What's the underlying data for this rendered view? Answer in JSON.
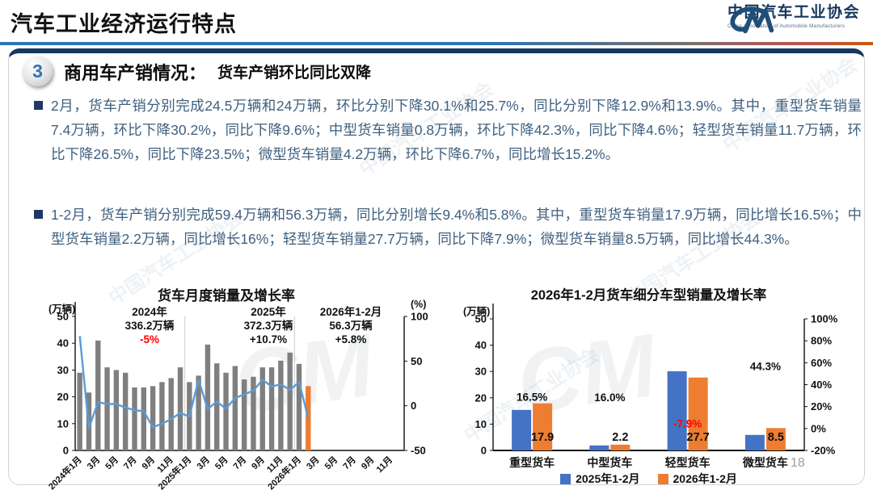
{
  "page": {
    "title": "汽车工业经济运行特点",
    "page_number": "18"
  },
  "logo": {
    "name_cn": "中国汽车工业协会",
    "name_en": "China Association of Automobile Manufacturers"
  },
  "section": {
    "badge": "3",
    "title": "商用车产销情况：",
    "subtitle": "货车产销环比同比双降"
  },
  "bullets": [
    "2月，货车产销分别完成24.5万辆和24万辆，环比分别下降30.1%和25.7%，同比分别下降12.9%和13.9%。其中，重型货车销量7.4万辆，环比下降30.2%，同比下降9.6%；中型货车销量0.8万辆，环比下降42.3%，同比下降4.6%；轻型货车销量11.7万辆，环比下降26.5%，同比下降23.5%；微型货车销量4.2万辆，环比下降6.7%，同比增长15.2%。",
    "1-2月，货车产销分别完成59.4万辆和56.3万辆，同比分别增长9.4%和5.8%。其中，重型货车销量17.9万辆，同比增长16.5%；中型货车销量2.2万辆，同比增长16%；轻型货车销量27.7万辆，同比下降7.9%；微型货车销量8.5万辆，同比增长44.3%。"
  ],
  "watermark": {
    "text": "中国汽车工业协会",
    "monogram": "CM"
  },
  "colors": {
    "accent_navy": "#17375E",
    "text_blue": "#40607F",
    "rule_blue": "#2E74B5",
    "red": "#FF0000"
  },
  "chart_data": [
    {
      "type": "bar",
      "title": "货车月度销量及增长率",
      "left_axis_label": "(万辆)",
      "right_axis_label": "(%)",
      "left_ticks": [
        0,
        10,
        20,
        30,
        40,
        50
      ],
      "right_ticks": [
        -50,
        0,
        50,
        100
      ],
      "left_ylim": [
        0,
        50
      ],
      "right_ylim": [
        -50,
        100
      ],
      "n_slots": 36,
      "x_tick_labels": [
        "2024年1月",
        "3月",
        "5月",
        "7月",
        "9月",
        "11月",
        "2025年1月",
        "3月",
        "5月",
        "7月",
        "9月",
        "11月",
        "2026年1月",
        "3月",
        "5月",
        "7月",
        "9月",
        "11月"
      ],
      "year_separators_after": [
        11,
        23
      ],
      "bars": {
        "name": "月度销量(万辆)",
        "color": "#7F7F7F",
        "highlight_last_color": "#ED7D31",
        "values": [
          29,
          21.6,
          41,
          31,
          30,
          29,
          23.5,
          23.5,
          24,
          25.5,
          27,
          31,
          25.5,
          27.9,
          39.5,
          32.5,
          29,
          31.5,
          26.5,
          27.5,
          31,
          31,
          33.5,
          36.5,
          32.3,
          24
        ]
      },
      "line": {
        "name": "同比增长率(%)",
        "color": "#5B9BD5",
        "values": [
          78,
          -25,
          4,
          2,
          2,
          -2,
          -5,
          -6,
          -24,
          -20,
          -15,
          -8,
          -12.1,
          29.2,
          -3.7,
          4.8,
          -3.3,
          8.6,
          12.8,
          17,
          29.2,
          21.6,
          24.1,
          17.7,
          26.7,
          -13.9
        ]
      },
      "annotations": [
        {
          "label": "2024年",
          "value": "336.2万辆",
          "growth": "-5%",
          "growth_color": "#FF0000"
        },
        {
          "label": "2025年",
          "value": "372.3万辆",
          "growth": "+10.7%",
          "growth_color": "#111111"
        },
        {
          "label": "2026年1-2月",
          "value": "56.3万辆",
          "growth": "+5.8%",
          "growth_color": "#111111"
        }
      ]
    },
    {
      "type": "bar",
      "title": "2026年1-2月货车细分车型销量及增长率",
      "left_axis_label": "(万辆)",
      "left_ticks": [
        0,
        10,
        20,
        30,
        40,
        50
      ],
      "right_ticks": [
        "100%",
        "80%",
        "60%",
        "40%",
        "20%",
        "0%",
        "-20%"
      ],
      "left_ylim": [
        0,
        50
      ],
      "right_ylim": [
        -20,
        100
      ],
      "categories": [
        "重型货车",
        "中型货车",
        "轻型货车",
        "微型货车"
      ],
      "series": [
        {
          "name": "2025年1-2月",
          "color": "#4472C4",
          "values": [
            15.4,
            1.9,
            30.1,
            5.9
          ]
        },
        {
          "name": "2026年1-2月",
          "color": "#ED7D31",
          "values": [
            17.9,
            2.2,
            27.7,
            8.5
          ]
        }
      ],
      "bar_value_labels": [
        "17.9",
        "2.2",
        "27.7",
        "8.5"
      ],
      "growth_values": [
        16.5,
        16.0,
        -7.9,
        44.3
      ],
      "growth_labels": [
        "16.5%",
        "16.0%",
        "-7.9%",
        "44.3%"
      ],
      "growth_negative_color": "#FF0000"
    }
  ]
}
